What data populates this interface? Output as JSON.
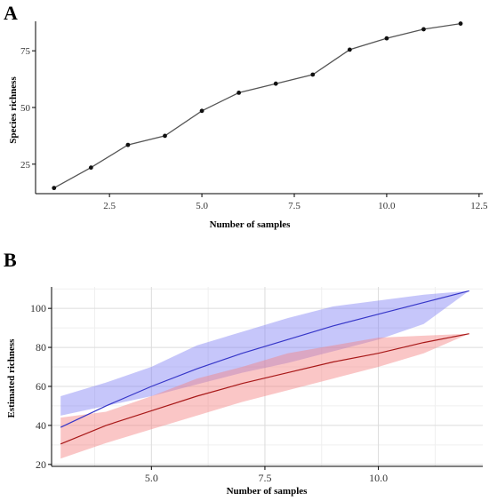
{
  "chart_data": [
    {
      "panel": "A",
      "type": "line",
      "xlabel": "Number of samples",
      "ylabel": "Species richness",
      "xlim": [
        0.5,
        12.6
      ],
      "ylim": [
        12,
        88
      ],
      "xticks": [
        "2.5",
        "5.0",
        "7.5",
        "10.0",
        "12.5"
      ],
      "yticks": [
        "25",
        "50",
        "75"
      ],
      "grid": false,
      "x": [
        1,
        2,
        3,
        4,
        5,
        6,
        7,
        8,
        9,
        10,
        11,
        12
      ],
      "series": [
        {
          "values": [
            14.5,
            23.5,
            33.5,
            37.5,
            48.5,
            56.5,
            60.5,
            64.5,
            75.5,
            80.5,
            84.5,
            87
          ]
        }
      ],
      "colors": {
        "line": "#555555",
        "point": "#111111"
      }
    },
    {
      "panel": "B",
      "type": "area",
      "xlabel": "Number of samples",
      "ylabel": "Estimated richness",
      "xlim": [
        2.8,
        12.3
      ],
      "ylim": [
        19,
        111
      ],
      "xticks": [
        "5.0",
        "7.5",
        "10.0"
      ],
      "yticks": [
        "20",
        "40",
        "60",
        "80",
        "100"
      ],
      "grid": true,
      "x": [
        3,
        4,
        5,
        6,
        7,
        8,
        9,
        10,
        11,
        12
      ],
      "series": [
        {
          "color": "#3636c8",
          "fill": "#8080f4",
          "values": [
            39,
            50,
            60,
            69,
            77,
            84,
            91,
            97,
            103,
            109
          ],
          "lower": [
            45,
            50,
            55,
            61,
            67,
            72,
            78,
            84,
            92,
            109
          ],
          "upper": [
            55,
            62,
            70,
            81,
            88,
            95,
            101,
            104,
            107,
            109
          ]
        },
        {
          "color": "#a81818",
          "fill": "#f48080",
          "values": [
            30.5,
            40,
            47.5,
            55,
            61.5,
            67,
            72.5,
            77,
            82.5,
            87
          ],
          "lower": [
            23,
            31,
            38,
            45,
            52,
            58,
            64,
            70,
            77,
            87
          ],
          "upper": [
            44,
            47,
            55,
            64,
            70,
            77,
            81,
            85,
            86,
            87
          ]
        }
      ]
    }
  ]
}
